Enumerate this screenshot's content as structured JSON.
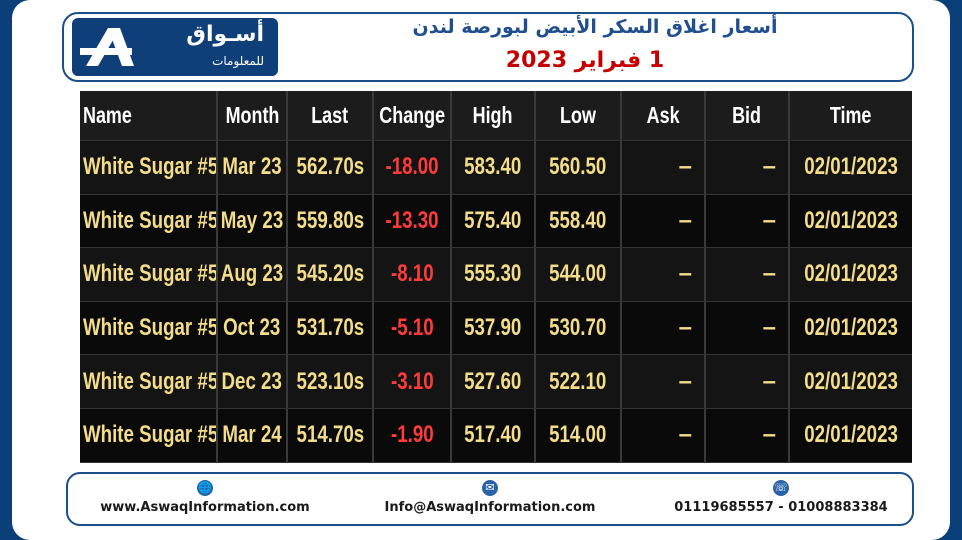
{
  "header": {
    "logo_text": "أسـواق",
    "logo_sub": "للمعلومات",
    "title": "أسعار اغلاق السكر الأبيض لبورصة لندن",
    "date": "1 فبراير 2023"
  },
  "table": {
    "columns": [
      "Name",
      "Month",
      "Last",
      "Change",
      "High",
      "Low",
      "Ask",
      "Bid",
      "Time"
    ],
    "rows": [
      {
        "name": "White Sugar #5",
        "month": "Mar 23",
        "last": "562.70s",
        "change": "-18.00",
        "high": "583.40",
        "low": "560.50",
        "ask": "–",
        "bid": "–",
        "time": "02/01/2023"
      },
      {
        "name": "White Sugar #5",
        "month": "May 23",
        "last": "559.80s",
        "change": "-13.30",
        "high": "575.40",
        "low": "558.40",
        "ask": "–",
        "bid": "–",
        "time": "02/01/2023"
      },
      {
        "name": "White Sugar #5",
        "month": "Aug 23",
        "last": "545.20s",
        "change": "-8.10",
        "high": "555.30",
        "low": "544.00",
        "ask": "–",
        "bid": "–",
        "time": "02/01/2023"
      },
      {
        "name": "White Sugar #5",
        "month": "Oct 23",
        "last": "531.70s",
        "change": "-5.10",
        "high": "537.90",
        "low": "530.70",
        "ask": "–",
        "bid": "–",
        "time": "02/01/2023"
      },
      {
        "name": "White Sugar #5",
        "month": "Dec 23",
        "last": "523.10s",
        "change": "-3.10",
        "high": "527.60",
        "low": "522.10",
        "ask": "–",
        "bid": "–",
        "time": "02/01/2023"
      },
      {
        "name": "White Sugar #5",
        "month": "Mar 24",
        "last": "514.70s",
        "change": "-1.90",
        "high": "517.40",
        "low": "514.00",
        "ask": "–",
        "bid": "–",
        "time": "02/01/2023"
      }
    ]
  },
  "footer": {
    "website": "www.AswaqInformation.com",
    "email": "Info@AswaqInformation.com",
    "phones": "01119685557 - 01008883384",
    "icons": [
      "globe-icon",
      "envelope-icon",
      "phone-icon"
    ]
  },
  "colors": {
    "background": "#0b3f7a",
    "value_text": "#f3dc8a",
    "negative": "#ff3b3b",
    "title": "#1f4f8f",
    "date": "#c40000"
  }
}
